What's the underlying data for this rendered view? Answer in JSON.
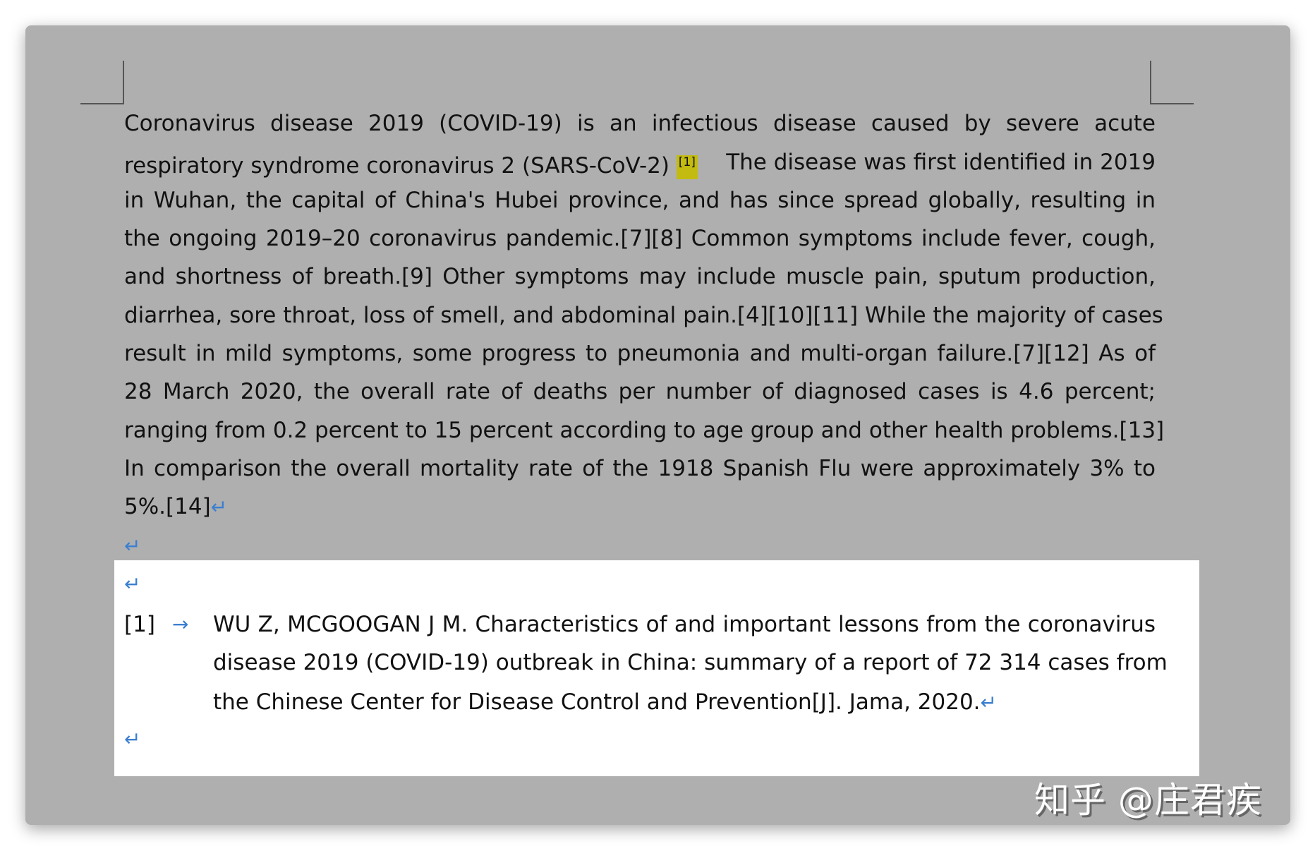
{
  "body_lines": [
    "Coronavirus disease 2019 (COVID-19) is an infectious disease caused by severe acute",
    "respiratory syndrome coronavirus 2 (SARS-CoV-2)",
    "The disease was first identified in 2019",
    "in Wuhan, the capital of China's Hubei province, and has since spread globally, resulting in",
    "the ongoing 2019–20 coronavirus pandemic.[7][8] Common symptoms include fever, cough,",
    "and shortness of breath.[9] Other symptoms may include muscle pain, sputum production,",
    "diarrhea, sore throat, loss of smell, and abdominal pain.[4][10][11] While the majority of cases",
    "result in mild symptoms, some progress to pneumonia and multi-organ failure.[7][12] As of",
    "28 March 2020, the overall rate of deaths per number of diagnosed cases is 4.6 percent;",
    "ranging from 0.2 percent to 15 percent according to age group and other health problems.[13]",
    "In comparison the overall mortality rate of the 1918 Spanish Flu were approximately 3% to",
    "5%.[14]"
  ],
  "citation_marker": "[1]",
  "paragraph_mark": "↵",
  "tab_mark": "→",
  "reference": {
    "number": "[1]",
    "lines": [
      "WU Z, MCGOOGAN J M. Characteristics of and important lessons from the coronavirus",
      "disease 2019 (COVID-19) outbreak in China: summary of a report of 72 314 cases from",
      "the Chinese Center for Disease Control and Prevention[J]. Jama, 2020."
    ]
  },
  "watermark": "知乎 @庄君疾",
  "colors": {
    "panel": "#afafaf",
    "highlight": "#c3bb10",
    "format_marks": "#3b7fd0"
  }
}
